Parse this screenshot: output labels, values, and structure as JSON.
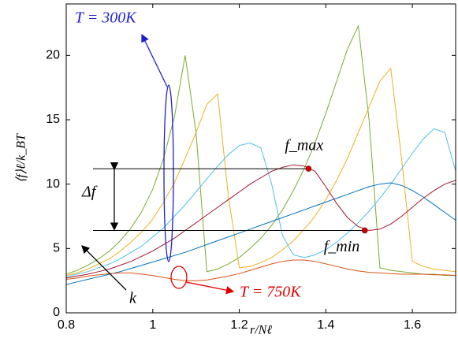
{
  "chart_data": {
    "type": "line",
    "xlabel": "r/Nℓ",
    "ylabel": "⟨f⟩ℓ/k_BT",
    "x": [
      0.8,
      0.825,
      0.85,
      0.875,
      0.9,
      0.925,
      0.95,
      0.975,
      1.0,
      1.025,
      1.05,
      1.075,
      1.1,
      1.125,
      1.15,
      1.175,
      1.2,
      1.225,
      1.25,
      1.275,
      1.3,
      1.325,
      1.35,
      1.375,
      1.4,
      1.425,
      1.45,
      1.475,
      1.5,
      1.525,
      1.55,
      1.575,
      1.6,
      1.625,
      1.65,
      1.675,
      1.7
    ],
    "series": [
      {
        "color": "#77ac30",
        "values": [
          3.0,
          3.3,
          3.7,
          4.2,
          4.8,
          5.6,
          6.6,
          7.9,
          9.6,
          12.0,
          15.2,
          20.0,
          14,
          3.2,
          3.4,
          3.8,
          4.3,
          5.0,
          5.8,
          6.8,
          8.0,
          9.5,
          11.2,
          13.2,
          15.5,
          18.0,
          20.5,
          22.3,
          15,
          3.5,
          3.3,
          3.2,
          3.1,
          3.0,
          3.0,
          2.9,
          2.9
        ]
      },
      {
        "color": "#edb120",
        "values": [
          2.9,
          3.1,
          3.4,
          3.8,
          4.2,
          4.8,
          5.5,
          6.3,
          7.3,
          8.6,
          10.1,
          12.0,
          14.0,
          16.2,
          17.0,
          9,
          3.5,
          3.6,
          3.9,
          4.3,
          4.9,
          5.6,
          6.5,
          7.5,
          8.8,
          10.3,
          12.0,
          14.0,
          16.0,
          18.0,
          19.0,
          12,
          4.0,
          3.6,
          3.4,
          3.3,
          3.2
        ]
      },
      {
        "color": "#4dbeee",
        "values": [
          2.8,
          3.0,
          3.2,
          3.5,
          3.8,
          4.2,
          4.7,
          5.2,
          5.9,
          6.6,
          7.5,
          8.4,
          9.4,
          10.4,
          11.4,
          12.3,
          13.0,
          13.2,
          12.8,
          10,
          6,
          4.5,
          4.3,
          4.5,
          4.9,
          5.5,
          6.2,
          7.0,
          7.9,
          8.9,
          10.0,
          11.2,
          12.4,
          13.5,
          14.3,
          14.0,
          11
        ]
      },
      {
        "color": "#a2142f",
        "values": [
          2.7,
          2.85,
          3.0,
          3.2,
          3.4,
          3.7,
          4.0,
          4.4,
          4.8,
          5.3,
          5.8,
          6.4,
          7.0,
          7.6,
          8.2,
          8.8,
          9.4,
          10.0,
          10.5,
          11.0,
          11.3,
          11.5,
          11.4,
          11.0,
          9.8,
          8.5,
          7.4,
          6.7,
          6.4,
          6.5,
          6.9,
          7.5,
          8.2,
          8.9,
          9.5,
          10.0,
          10.3
        ]
      },
      {
        "color": "#0072bd",
        "values": [
          2.2,
          2.4,
          2.6,
          2.8,
          3.0,
          3.2,
          3.45,
          3.7,
          3.95,
          4.2,
          4.45,
          4.7,
          5.0,
          5.3,
          5.6,
          5.9,
          6.2,
          6.5,
          6.8,
          7.1,
          7.4,
          7.7,
          8.0,
          8.3,
          8.6,
          8.9,
          9.2,
          9.5,
          9.8,
          10.0,
          10.1,
          9.9,
          9.5,
          9.0,
          8.4,
          7.8,
          7.2
        ]
      },
      {
        "color": "#d95319",
        "values": [
          2.6,
          2.7,
          2.85,
          2.95,
          3.05,
          3.1,
          3.1,
          3.0,
          2.9,
          2.75,
          2.6,
          2.5,
          2.5,
          2.55,
          2.7,
          2.85,
          3.05,
          3.3,
          3.55,
          3.8,
          4.0,
          4.1,
          4.1,
          4.0,
          3.8,
          3.6,
          3.4,
          3.25,
          3.15,
          3.1,
          3.05,
          3.0,
          3.0,
          3.0,
          2.95,
          2.95,
          2.9
        ]
      }
    ],
    "markers": [
      {
        "label": "f_max",
        "x": 1.36,
        "y": 11.2,
        "color": "#d00000"
      },
      {
        "label": "f_min",
        "x": 1.49,
        "y": 6.4,
        "color": "#d00000"
      }
    ],
    "annotations": [
      "T = 300K",
      "T = 750K",
      "Δf",
      "k"
    ],
    "xlim": [
      0.8,
      1.7
    ],
    "xticks": [
      0.8,
      1,
      1.2,
      1.4,
      1.6
    ],
    "ylim": [
      0,
      24
    ],
    "yticks": [
      0,
      5,
      10,
      15,
      20
    ]
  }
}
